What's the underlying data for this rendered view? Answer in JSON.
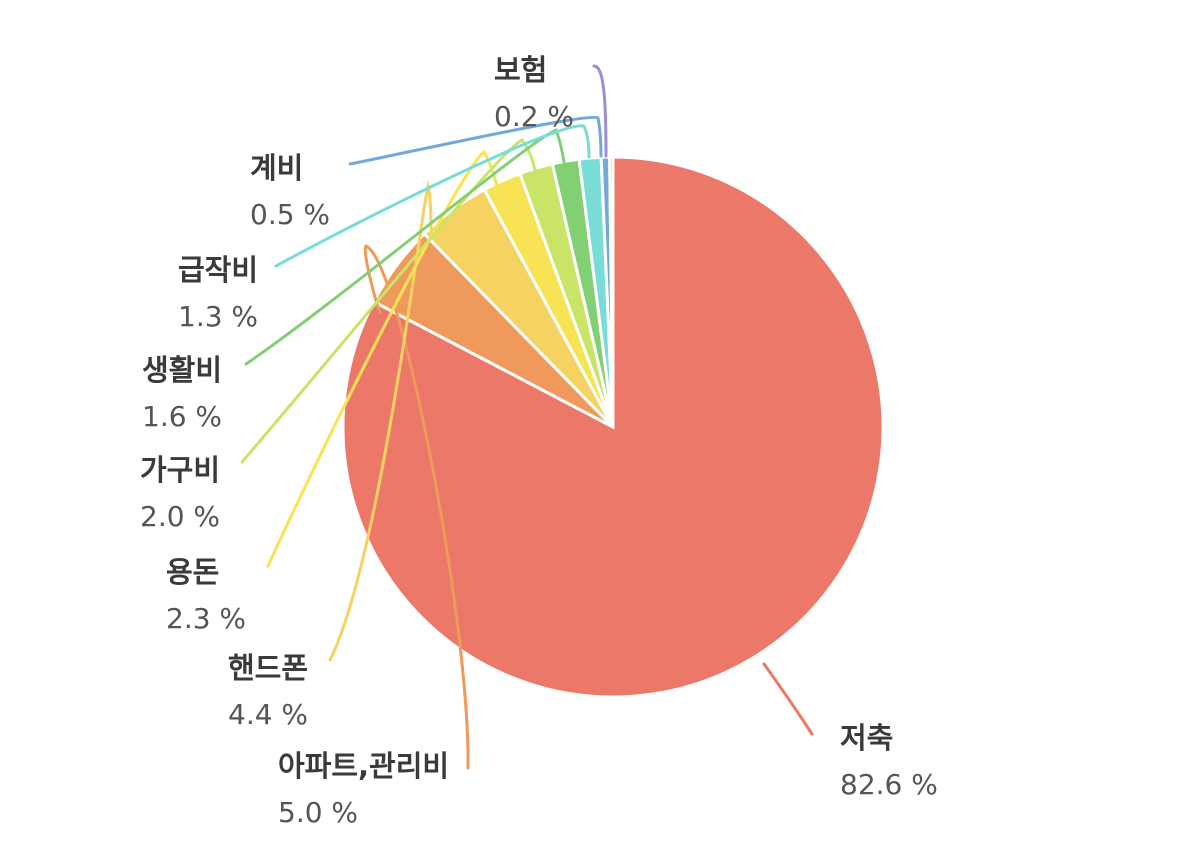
{
  "chart_data": {
    "type": "pie",
    "title": "",
    "start_angle_deg": 0,
    "direction": "clockwise",
    "slices": [
      {
        "label": "저축",
        "value": 82.6,
        "value_text": "82.6 %",
        "color": "#EC7869"
      },
      {
        "label": "아파트,관리비",
        "value": 5.0,
        "value_text": "5.0 %",
        "color": "#EF9A5C"
      },
      {
        "label": "핸드폰",
        "value": 4.4,
        "value_text": "4.4 %",
        "color": "#F5D261"
      },
      {
        "label": "용돈",
        "value": 2.3,
        "value_text": "2.3 %",
        "color": "#F7E354"
      },
      {
        "label": "가구비",
        "value": 2.0,
        "value_text": "2.0 %",
        "color": "#C9E466"
      },
      {
        "label": "생활비",
        "value": 1.6,
        "value_text": "1.6 %",
        "color": "#83CF73"
      },
      {
        "label": "급작비",
        "value": 1.3,
        "value_text": "1.3 %",
        "color": "#7ADCD7"
      },
      {
        "label": "계비",
        "value": 0.5,
        "value_text": "0.5 %",
        "color": "#72A9DA"
      },
      {
        "label": "보험",
        "value": 0.2,
        "value_text": "0.2 %",
        "color": "#9B8DD6"
      }
    ]
  }
}
